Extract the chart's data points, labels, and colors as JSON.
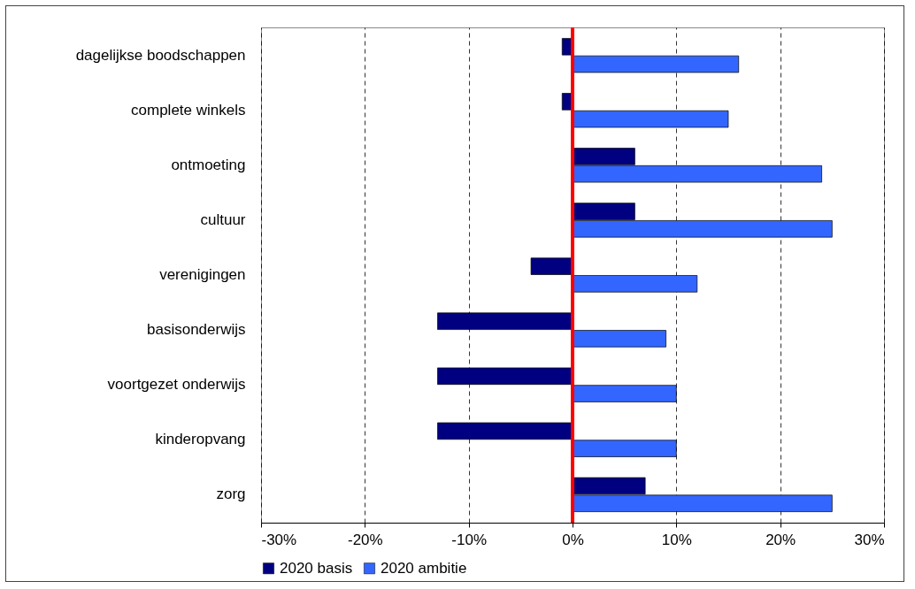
{
  "chart_data": {
    "type": "bar",
    "orientation": "horizontal",
    "categories": [
      "dagelijkse boodschappen",
      "complete winkels",
      "ontmoeting",
      "cultuur",
      "verenigingen",
      "basisonderwijs",
      "voortgezet onderwijs",
      "kinderopvang",
      "zorg"
    ],
    "series": [
      {
        "name": "2020 basis",
        "color": "#000080",
        "values": [
          -1,
          -1,
          6,
          6,
          -4,
          -13,
          -13,
          -13,
          7
        ]
      },
      {
        "name": "2020 ambitie",
        "color": "#3366ff",
        "values": [
          16,
          15,
          24,
          25,
          12,
          9,
          10,
          10,
          25
        ]
      }
    ],
    "xlim": [
      -30,
      30
    ],
    "xticks": [
      {
        "value": -30,
        "label": "-30%"
      },
      {
        "value": -20,
        "label": "-20%"
      },
      {
        "value": -10,
        "label": "-10%"
      },
      {
        "value": 0,
        "label": "0%"
      },
      {
        "value": 10,
        "label": "10%"
      },
      {
        "value": 20,
        "label": "20%"
      },
      {
        "value": 30,
        "label": "30%"
      }
    ],
    "ref_lines": [
      {
        "axis": "x",
        "value": 0,
        "color": "#ff0000"
      }
    ],
    "grid": "x",
    "line_style": "dashed",
    "legend": "bottom"
  }
}
